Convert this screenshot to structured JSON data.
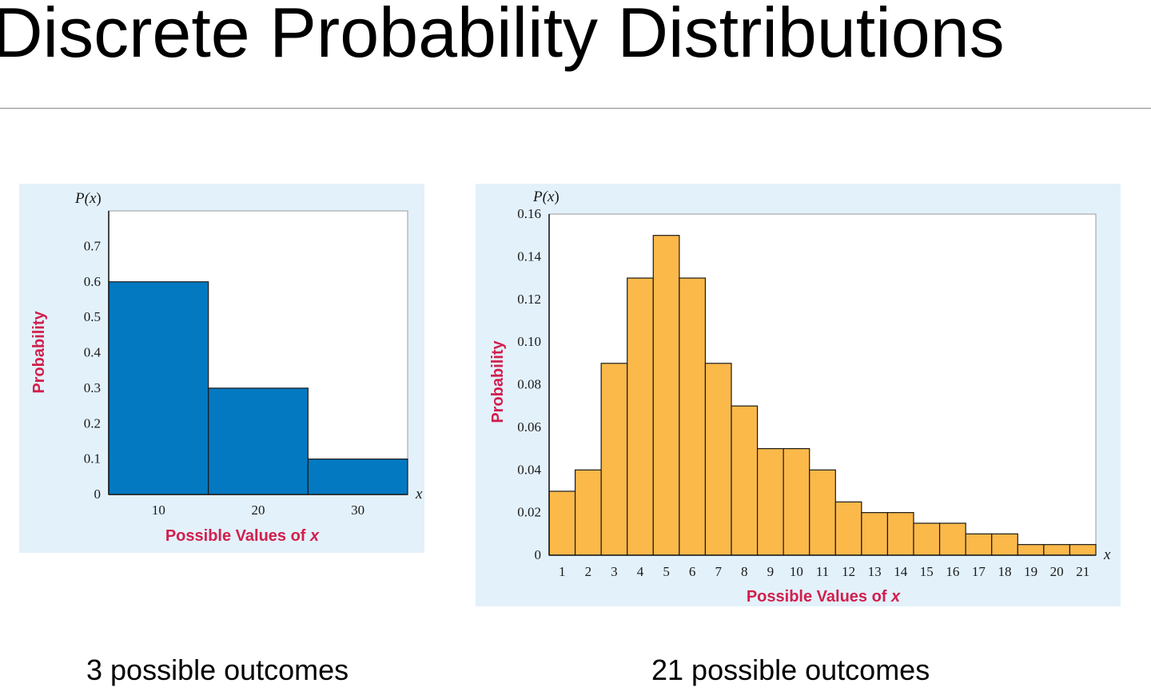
{
  "slide": {
    "title": "Discrete Probability Distributions",
    "captions": [
      "3 possible outcomes",
      "21 possible outcomes"
    ]
  },
  "chart_data": [
    {
      "type": "bar",
      "title": "",
      "categories": [
        "10",
        "20",
        "30"
      ],
      "values": [
        0.6,
        0.3,
        0.1
      ],
      "y_var_label": "P(x)",
      "x_var_label": "x",
      "xlabel": "Possible Values of x",
      "ylabel": "Probability",
      "ylim": [
        0,
        0.8
      ],
      "y_ticks": [
        "0",
        "0.1",
        "0.2",
        "0.3",
        "0.4",
        "0.5",
        "0.6",
        "0.7"
      ],
      "grid": false,
      "bar_color": "#0379c2",
      "panel_background": "#e3f1fb",
      "axis_title_color": "#d21f4d"
    },
    {
      "type": "bar",
      "title": "",
      "categories": [
        "1",
        "2",
        "3",
        "4",
        "5",
        "6",
        "7",
        "8",
        "9",
        "10",
        "11",
        "12",
        "13",
        "14",
        "15",
        "16",
        "17",
        "18",
        "19",
        "20",
        "21"
      ],
      "values": [
        0.03,
        0.04,
        0.09,
        0.13,
        0.15,
        0.13,
        0.09,
        0.07,
        0.05,
        0.05,
        0.04,
        0.025,
        0.02,
        0.02,
        0.015,
        0.015,
        0.01,
        0.01,
        0.005,
        0.005,
        0.005
      ],
      "y_var_label": "P(x)",
      "x_var_label": "x",
      "xlabel": "Possible Values of x",
      "ylabel": "Probability",
      "ylim": [
        0,
        0.16
      ],
      "y_ticks": [
        "0",
        "0.02",
        "0.04",
        "0.06",
        "0.08",
        "0.10",
        "0.12",
        "0.14",
        "0.16"
      ],
      "grid": false,
      "bar_color": "#fbb94a",
      "panel_background": "#e3f1fb",
      "axis_title_color": "#d21f4d"
    }
  ]
}
